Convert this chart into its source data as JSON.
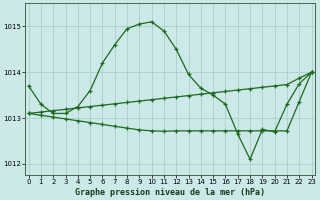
{
  "x": [
    0,
    1,
    2,
    3,
    4,
    5,
    6,
    7,
    8,
    9,
    10,
    11,
    12,
    13,
    14,
    15,
    16,
    17,
    18,
    19,
    20,
    21,
    22,
    23
  ],
  "line1": [
    1013.7,
    1013.3,
    1013.1,
    1013.1,
    1013.25,
    1013.6,
    1014.2,
    1014.6,
    1014.95,
    1015.05,
    1015.1,
    1014.9,
    1014.5,
    1013.95,
    1013.65,
    1013.5,
    1013.3,
    1012.65,
    1012.1,
    1012.75,
    1012.7,
    1013.3,
    1013.75,
    1014.0
  ],
  "line2": [
    1013.1,
    1013.13,
    1013.16,
    1013.19,
    1013.22,
    1013.25,
    1013.28,
    1013.31,
    1013.34,
    1013.37,
    1013.4,
    1013.43,
    1013.46,
    1013.49,
    1013.52,
    1013.55,
    1013.58,
    1013.61,
    1013.64,
    1013.67,
    1013.7,
    1013.73,
    1013.87,
    1014.0
  ],
  "line3": [
    1013.1,
    1013.06,
    1013.02,
    1012.98,
    1012.94,
    1012.9,
    1012.86,
    1012.82,
    1012.78,
    1012.74,
    1012.72,
    1012.71,
    1012.72,
    1012.72,
    1012.72,
    1012.72,
    1012.72,
    1012.72,
    1012.72,
    1012.72,
    1012.72,
    1012.72,
    1013.36,
    1014.0
  ],
  "bg_color": "#cce8e8",
  "grid_color": "#aad0d0",
  "line_color": "#1a6b1a",
  "title": "Graphe pression niveau de la mer (hPa)",
  "ylim": [
    1011.75,
    1015.5
  ],
  "yticks": [
    1012,
    1013,
    1014,
    1015
  ],
  "xticks": [
    0,
    1,
    2,
    3,
    4,
    5,
    6,
    7,
    8,
    9,
    10,
    11,
    12,
    13,
    14,
    15,
    16,
    17,
    18,
    19,
    20,
    21,
    22,
    23
  ],
  "marker": "+",
  "marker_size": 3,
  "linewidth": 0.9,
  "tick_labelsize": 5,
  "xlabel_fontsize": 6,
  "spine_color": "#446644"
}
